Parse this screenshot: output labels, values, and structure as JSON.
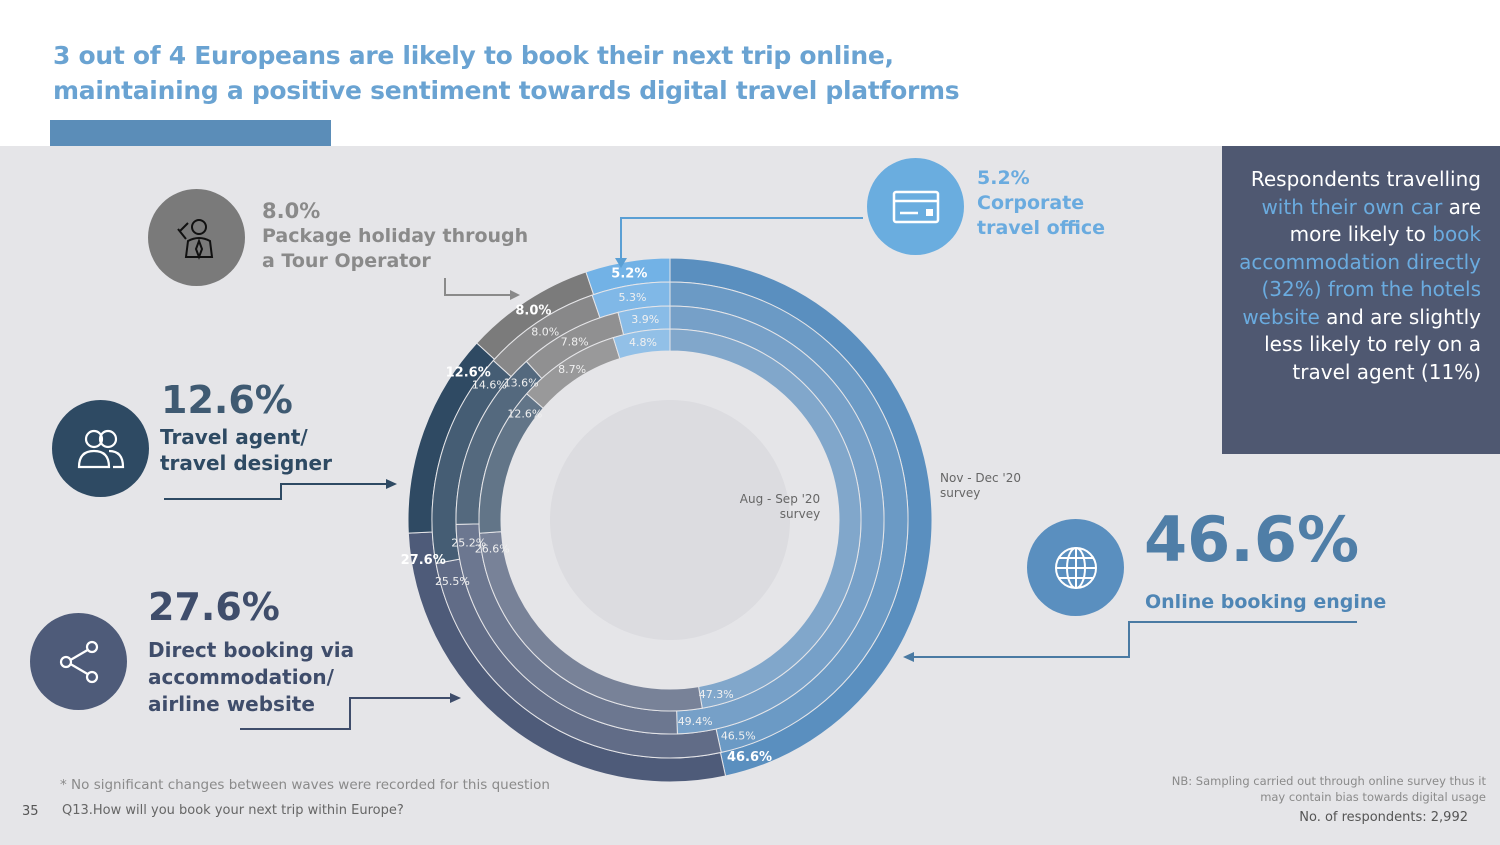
{
  "title": {
    "line1": "3 out of 4 Europeans are likely to book their next trip online,",
    "line2": "maintaining a positive sentiment towards digital travel platforms"
  },
  "labels": {
    "package": {
      "pct": "8.0%",
      "line1": "Package holiday through",
      "line2": "a Tour Operator",
      "icon": "tour-operator-icon"
    },
    "corporate": {
      "pct": "5.2%",
      "line1": "Corporate",
      "line2": "travel office",
      "icon": "credit-card-icon"
    },
    "agent": {
      "pct": "12.6%",
      "line1": "Travel agent/",
      "line2": "travel designer",
      "icon": "users-icon"
    },
    "direct": {
      "pct": "27.6%",
      "line1": "Direct booking via",
      "line2": "accommodation/",
      "line3": "airline website",
      "icon": "share-icon"
    },
    "online": {
      "pct": "46.6%",
      "line1": "Online booking engine",
      "icon": "globe-icon"
    }
  },
  "callout": {
    "p1": "Respondents travelling ",
    "h1": "with their own car",
    "p2": " are more likely to ",
    "h2": "book accommodation directly (32%) from the hotels website",
    "p3": " and are slightly less likely to rely on a travel agent (11%)"
  },
  "footer": {
    "note": "* No significant changes between waves were recorded for this question",
    "page": "35",
    "question": "Q13.How will you book your next trip within Europe?",
    "nb1": "NB: Sampling carried out through online survey thus it",
    "nb2": "may contain bias towards digital usage",
    "respondents": "No. of respondents: 2,992"
  },
  "chart_data": {
    "type": "donut",
    "categories": [
      "Online booking engine",
      "Direct booking via accommodation/airline website",
      "Travel agent/travel designer",
      "Package holiday through a Tour Operator",
      "Corporate travel office"
    ],
    "colors": [
      "#5a8fbf",
      "#4e5b79",
      "#2f4a63",
      "#7b7b7b",
      "#72b2e6"
    ],
    "ring_labels": {
      "inner": "Aug - Sep '20 survey",
      "outer": "Nov - Dec '20 survey"
    },
    "inner_label_1": "Aug - Sep '20",
    "inner_label_2": "survey",
    "outer_label_1": "Nov - Dec '20",
    "outer_label_2": "survey",
    "series": [
      {
        "values": [
          46.6,
          27.6,
          12.6,
          8.0,
          5.2
        ],
        "labels": [
          "46.6%",
          "27.6%",
          "12.6%",
          "8.0%",
          "5.2%"
        ]
      },
      {
        "values": [
          46.5,
          25.5,
          14.6,
          8.0,
          5.3
        ],
        "labels": [
          "46.5%",
          "25.5%",
          "14.6%",
          "8.0%",
          "5.3%"
        ]
      },
      {
        "values": [
          49.4,
          25.2,
          13.6,
          7.8,
          3.9
        ],
        "labels": [
          "49.4%",
          "25.2%",
          "13.6%",
          "7.8%",
          "3.9%"
        ]
      },
      {
        "values": [
          47.3,
          26.6,
          12.6,
          8.7,
          4.8
        ],
        "labels": [
          "47.3%",
          "26.6%",
          "12.6%",
          "8.7%",
          "4.8%"
        ]
      }
    ]
  }
}
